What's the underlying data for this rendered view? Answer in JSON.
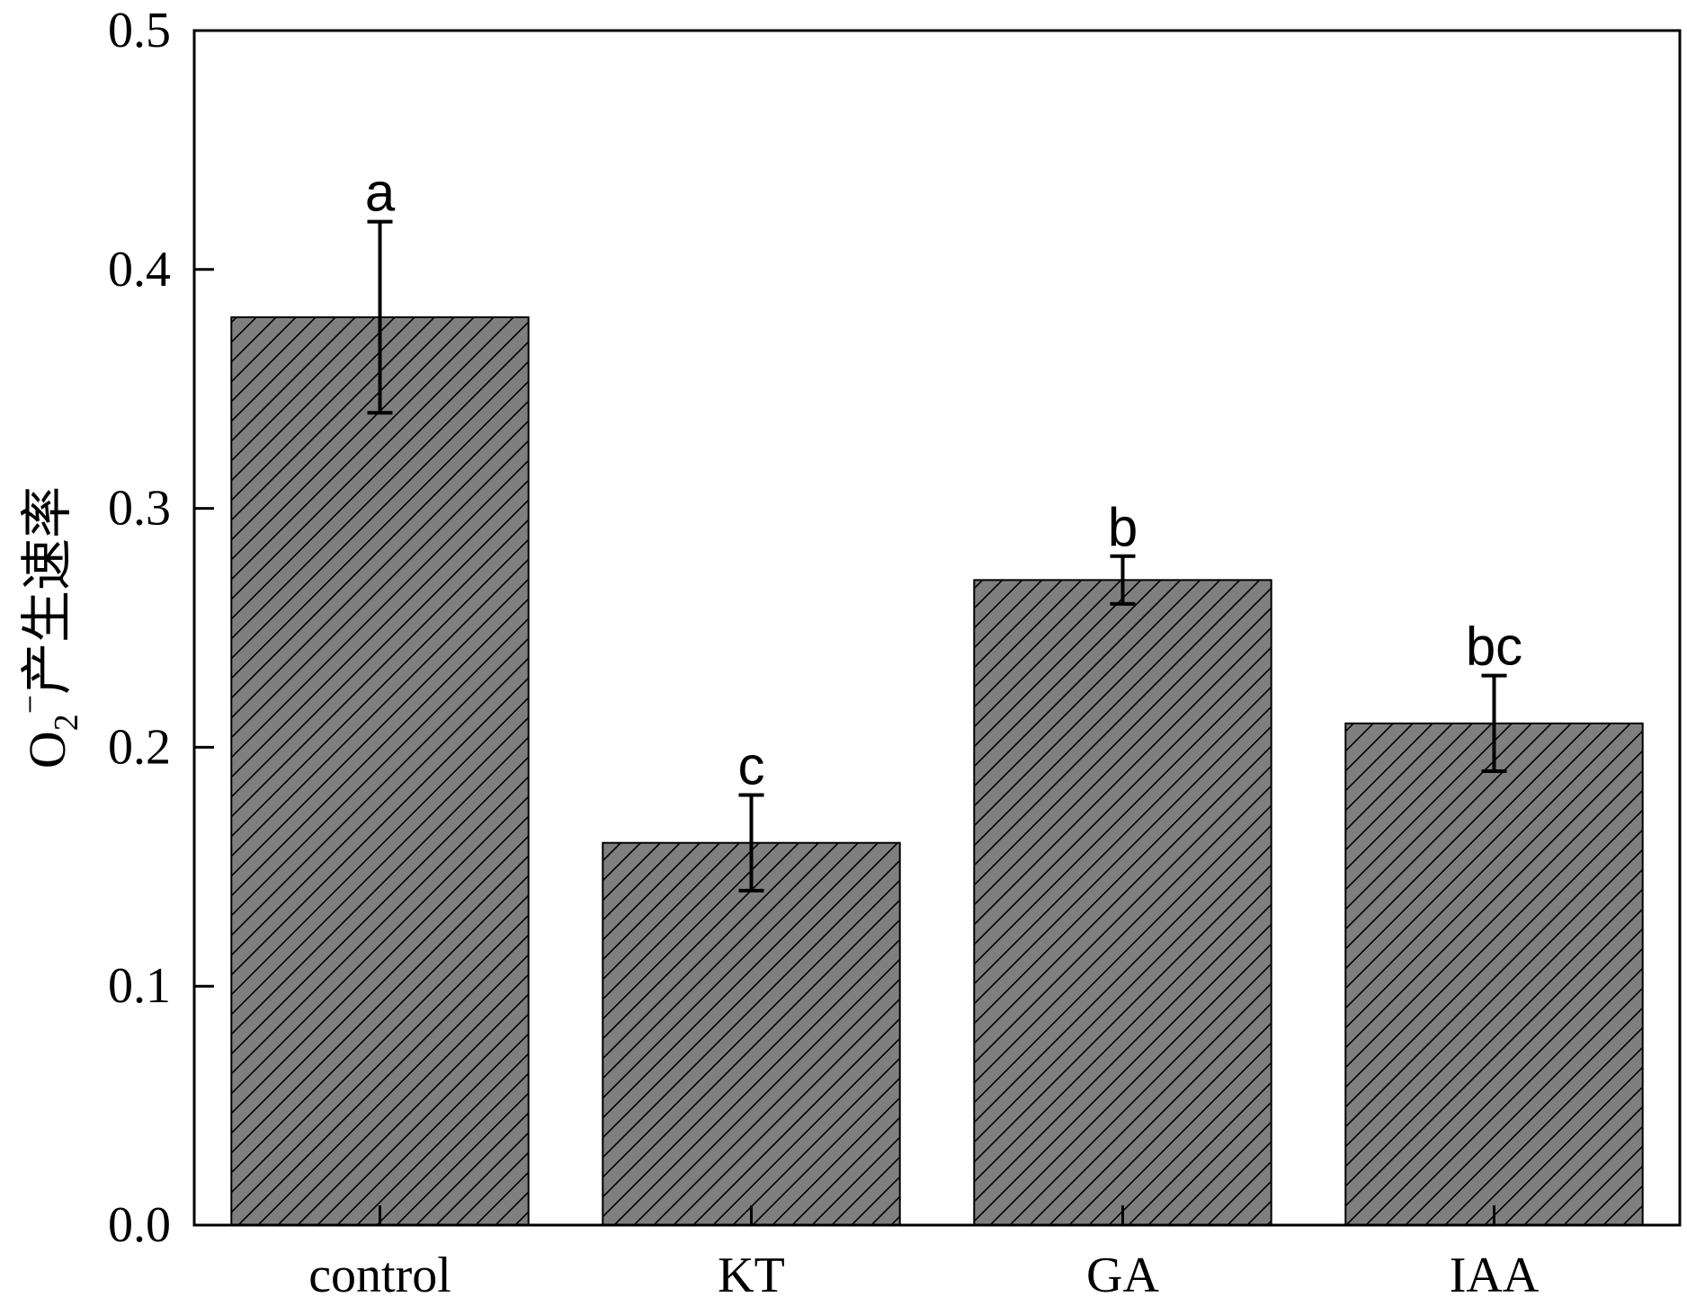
{
  "chart_data": {
    "type": "bar",
    "categories": [
      "control",
      "KT",
      "GA",
      "IAA"
    ],
    "values": [
      0.38,
      0.16,
      0.27,
      0.21
    ],
    "errors": [
      0.04,
      0.02,
      0.01,
      0.02
    ],
    "significance_labels": [
      "a",
      "c",
      "b",
      "bc"
    ],
    "ylim": [
      0,
      0.5
    ],
    "yticks": [
      0.0,
      0.1,
      0.2,
      0.3,
      0.4,
      0.5
    ],
    "ytick_labels": [
      "0.0",
      "0.1",
      "0.2",
      "0.3",
      "0.4",
      "0.5"
    ],
    "ylabel": {
      "prefix": "O",
      "subscript": "2",
      "superscript": "−",
      "suffix": "产生速率"
    },
    "xlabel": "",
    "title": "",
    "grid": false,
    "colors": {
      "bar_fill": "#7f7f7f",
      "hatch": "#000000",
      "edge": "#000000"
    },
    "hatch_pattern": "diagonal"
  }
}
